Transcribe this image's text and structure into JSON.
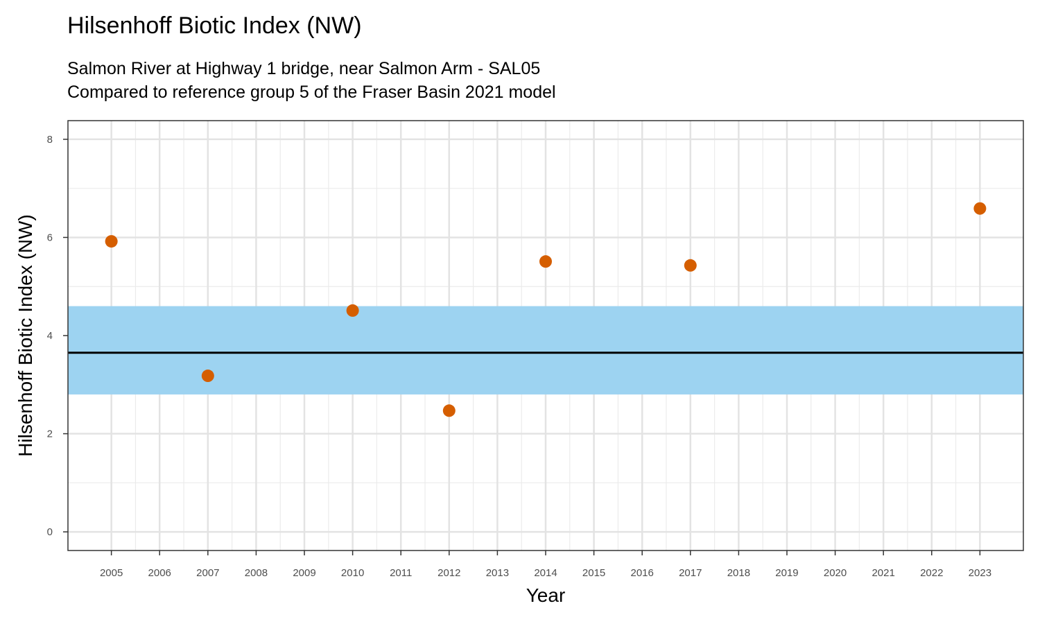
{
  "chart_data": {
    "type": "scatter",
    "title": "Hilsenhoff Biotic Index (NW)",
    "subtitle_lines": [
      "Salmon River at Highway 1 bridge, near Salmon Arm - SAL05",
      "Compared to reference group 5 of the Fraser Basin 2021 model"
    ],
    "xlabel": "Year",
    "ylabel": "Hilsenhoff Biotic Index (NW)",
    "x_ticks": [
      "2005",
      "2006",
      "2007",
      "2008",
      "2009",
      "2010",
      "2011",
      "2012",
      "2013",
      "2014",
      "2015",
      "2016",
      "2017",
      "2018",
      "2019",
      "2020",
      "2021",
      "2022",
      "2023"
    ],
    "y_ticks": [
      0,
      2,
      4,
      6,
      8
    ],
    "xlim": [
      2004.1,
      2023.9
    ],
    "ylim": [
      -0.38,
      8.38
    ],
    "grid": true,
    "reference_band": {
      "low": 2.8,
      "high": 4.6,
      "color": "#9dd3f1"
    },
    "reference_line": {
      "value": 3.65,
      "color": "#000000"
    },
    "point_color": "#d55e00",
    "points": [
      {
        "x": 2005,
        "y": 5.92
      },
      {
        "x": 2007,
        "y": 3.18
      },
      {
        "x": 2010,
        "y": 4.51
      },
      {
        "x": 2012,
        "y": 2.47
      },
      {
        "x": 2014,
        "y": 5.51
      },
      {
        "x": 2017,
        "y": 5.43
      },
      {
        "x": 2023,
        "y": 6.59
      }
    ]
  }
}
